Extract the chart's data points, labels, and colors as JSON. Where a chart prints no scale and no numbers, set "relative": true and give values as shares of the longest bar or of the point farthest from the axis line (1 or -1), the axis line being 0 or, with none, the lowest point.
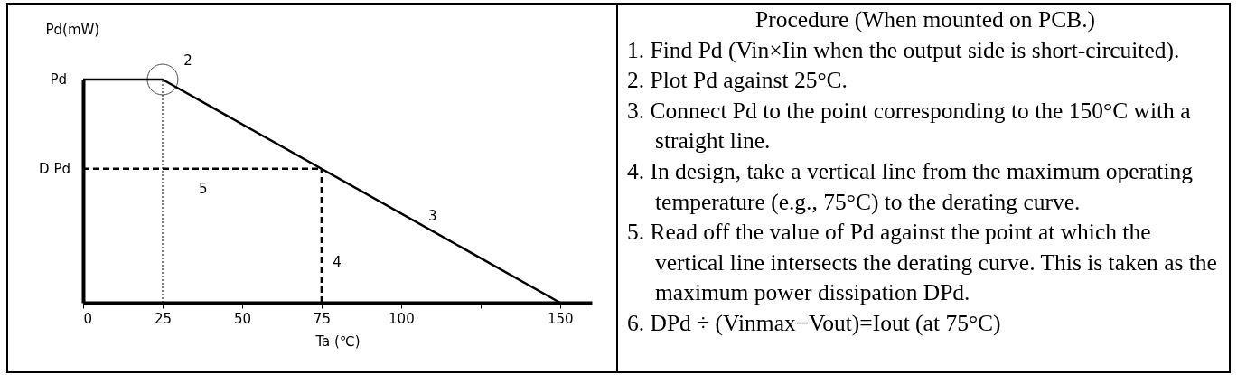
{
  "chart_data": [
    {
      "type": "line",
      "relative": true,
      "xlabel": "Ta (℃)",
      "ylabel": "Pd(mW)",
      "x": [
        0,
        25,
        150
      ],
      "xlim": [
        0,
        160
      ],
      "xticks": [
        0,
        25,
        50,
        75,
        100,
        {
          "value": 125,
          "label": null
        },
        150
      ],
      "legend": false,
      "grid": false,
      "marker": "none",
      "line_style": "solid",
      "series": [
        {
          "color": "#000000",
          "values": [
            1,
            1,
            0
          ]
        }
      ],
      "ref_lines": [
        {
          "axis": "y",
          "value": 0.6,
          "label": "D Pd",
          "line_style": "dashed"
        },
        {
          "axis": "x",
          "value": 75,
          "label": null,
          "line_style": "dashed"
        },
        {
          "axis": "x",
          "value": 25,
          "label": null,
          "line_style": "dotted"
        }
      ],
      "annotations": [
        {
          "text": "Pd",
          "x": 0,
          "y": 1
        },
        "2",
        "3",
        "4",
        "5"
      ]
    },
    {
      "type": "other",
      "title": "Procedure (When mounted on PCB.)",
      "annotations": [
        "1. Find Pd (Vin×Iin when the output side is short-circuited).",
        "2. Plot Pd against 25°C.",
        "3. Connect Pd to the point corresponding to the 150°C with a straight line.",
        "4. In design, take a vertical line from the maximum operating temperature (e.g., 75°C) to the derating curve.",
        "5. Read off the value of Pd against the point at which the vertical line intersects the derating curve. This is taken as the maximum power dissipation DPd.",
        "6. DPd ÷ (Vinmax−Vout)=Iout (at 75°C)"
      ]
    }
  ]
}
